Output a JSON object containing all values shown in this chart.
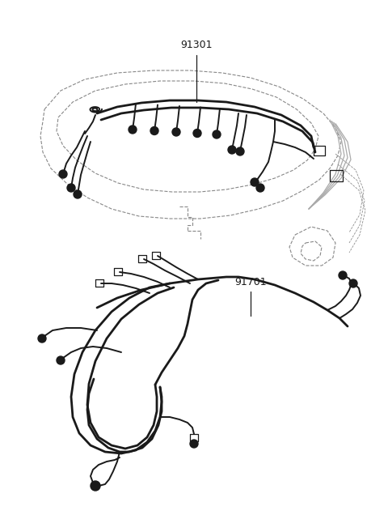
{
  "background_color": "#ffffff",
  "label_91301": "91301",
  "label_91701": "91701",
  "fig_width": 4.8,
  "fig_height": 6.57,
  "dpi": 100,
  "line_color": "#1a1a1a",
  "gray_color": "#aaaaaa",
  "dash_color": "#888888"
}
